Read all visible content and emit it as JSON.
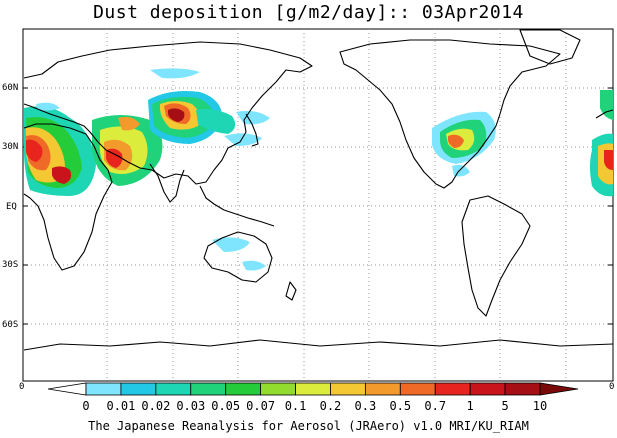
{
  "title": "Dust deposition [g/m2/day]:: 03Apr2014",
  "lat_ticks": [
    "60N",
    "30N",
    "EQ",
    "30S",
    "60S"
  ],
  "colorbar": {
    "left_label": "0",
    "right_label": "0",
    "tick_labels": [
      "0",
      "0.01",
      "0.02",
      "0.03",
      "0.05",
      "0.07",
      "0.1",
      "0.2",
      "0.3",
      "0.5",
      "0.7",
      "1",
      "5",
      "10"
    ],
    "colors": [
      "#ffffff",
      "#7fe5ff",
      "#22c8e6",
      "#1ed6b4",
      "#20d27a",
      "#24cc3a",
      "#92dc2e",
      "#dcec3c",
      "#f4c832",
      "#f29a2c",
      "#ef6a26",
      "#e8241e",
      "#c8141a",
      "#a50e14",
      "#7a0a0a"
    ]
  },
  "footer": "The Japanese Reanalysis for Aerosol (JRAero) v1.0 MRI/KU_RIAM"
}
